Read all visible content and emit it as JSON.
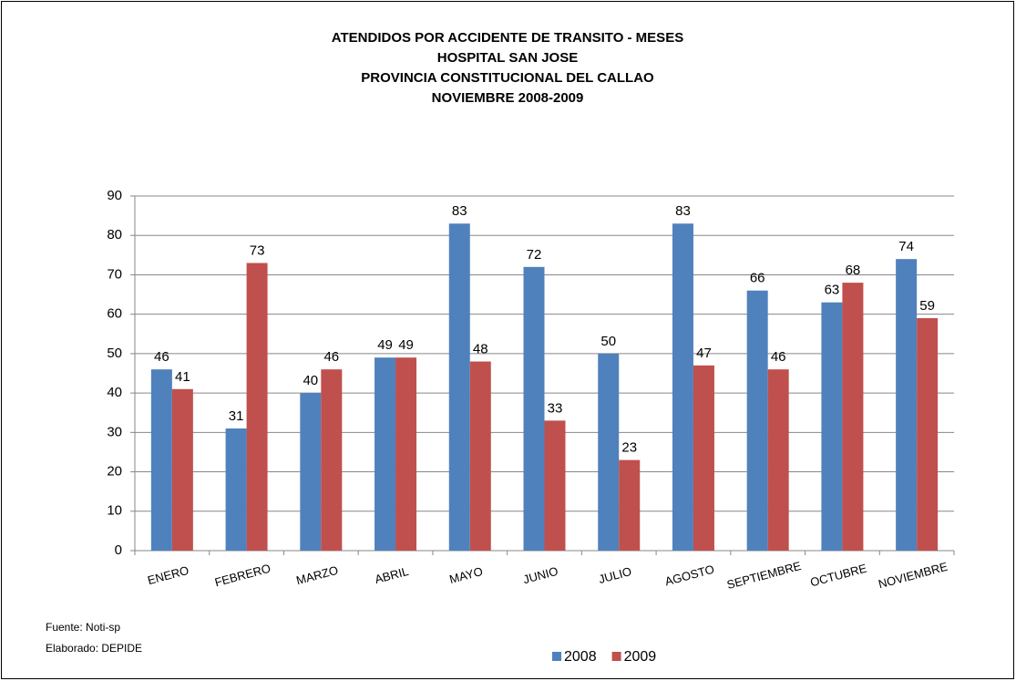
{
  "chart_data": {
    "type": "bar",
    "title_lines": [
      "ATENDIDOS POR ACCIDENTE DE TRANSITO  -  MESES",
      "HOSPITAL SAN JOSE",
      "PROVINCIA CONSTITUCIONAL DEL CALLAO",
      "NOVIEMBRE 2008-2009"
    ],
    "categories": [
      "ENERO",
      "FEBRERO",
      "MARZO",
      "ABRIL",
      "MAYO",
      "JUNIO",
      "JULIO",
      "AGOSTO",
      "SEPTIEMBRE",
      "OCTUBRE",
      "NOVIEMBRE"
    ],
    "series": [
      {
        "name": "2008",
        "color": "#4f81bd",
        "values": [
          46,
          31,
          40,
          49,
          83,
          72,
          50,
          83,
          66,
          63,
          74
        ]
      },
      {
        "name": "2009",
        "color": "#c0504d",
        "values": [
          41,
          73,
          46,
          49,
          48,
          33,
          23,
          47,
          46,
          68,
          59
        ]
      }
    ],
    "ylim": [
      0,
      90
    ],
    "yticks": [
      0,
      10,
      20,
      30,
      40,
      50,
      60,
      70,
      80,
      90
    ],
    "grid": true,
    "legend": "bottom",
    "notes": [
      "Fuente: Noti-sp",
      "Elaborado: DEPIDE"
    ]
  }
}
